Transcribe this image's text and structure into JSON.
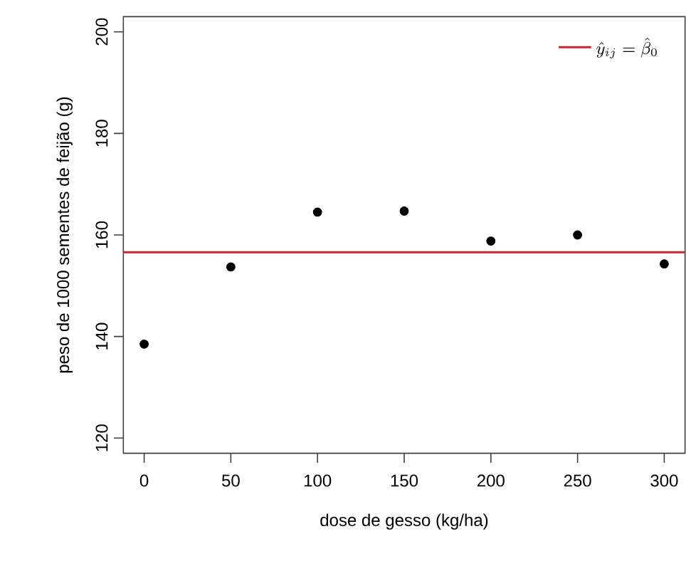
{
  "chart_data": {
    "type": "scatter",
    "xlabel": "dose de gesso (kg/ha)",
    "ylabel": "peso de 1000 sementes de feijão (g)",
    "x": [
      0,
      50,
      100,
      150,
      200,
      250,
      300
    ],
    "series": [
      {
        "color": "#000000",
        "values": [
          138.5,
          153.7,
          164.5,
          164.7,
          158.8,
          160.0,
          154.3
        ]
      }
    ],
    "marker": "circle",
    "xlim": [
      -12,
      312
    ],
    "ylim": [
      117,
      203
    ],
    "xticks": [
      0,
      50,
      100,
      150,
      200,
      250,
      300
    ],
    "yticks": [
      120,
      140,
      160,
      180,
      200
    ],
    "ref_lines": [
      {
        "axis": "y",
        "value": 156.6,
        "label": "\\hat{y}_{ij}=\\hat{\\beta}_0",
        "color": "#e41a1c"
      }
    ],
    "legend": "top right",
    "grid": false
  }
}
